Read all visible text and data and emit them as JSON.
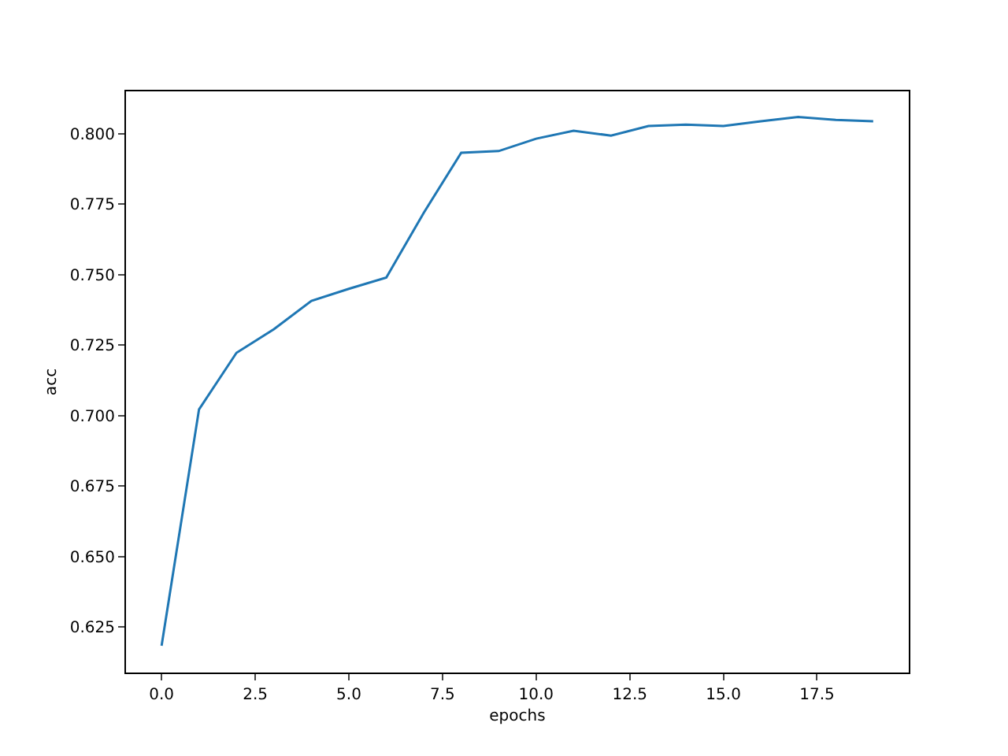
{
  "chart_data": {
    "type": "line",
    "xlabel": "epochs",
    "ylabel": "acc",
    "x": [
      0,
      1,
      2,
      3,
      4,
      5,
      6,
      7,
      8,
      9,
      10,
      11,
      12,
      13,
      14,
      15,
      16,
      17,
      18,
      19
    ],
    "series": [
      {
        "color": "#1f77b4",
        "values": [
          0.6183,
          0.7022,
          0.7223,
          0.7307,
          0.7407,
          0.745,
          0.749,
          0.772,
          0.7933,
          0.7939,
          0.7983,
          0.8011,
          0.7994,
          0.8028,
          0.8033,
          0.8028,
          0.8045,
          0.806,
          0.805,
          0.8045
        ]
      }
    ],
    "xlim": [
      -0.95,
      19.95
    ],
    "ylim": [
      0.6088,
      0.8151
    ],
    "xticks": [
      "0.0",
      {
        "value": 2.5,
        "label": "2.5"
      },
      {
        "value": 5,
        "label": "5.0"
      },
      {
        "value": 7.5,
        "label": "7.5"
      },
      {
        "value": 10,
        "label": "10.0"
      },
      {
        "value": 12.5,
        "label": "12.5"
      },
      {
        "value": 15,
        "label": "15.0"
      },
      {
        "value": 17.5,
        "label": "17.5"
      }
    ],
    "yticks": [
      {
        "value": 0.625,
        "label": "0.625"
      },
      {
        "value": 0.65,
        "label": "0.650"
      },
      {
        "value": 0.675,
        "label": "0.675"
      },
      {
        "value": 0.7,
        "label": "0.700"
      },
      {
        "value": 0.725,
        "label": "0.725"
      },
      {
        "value": 0.75,
        "label": "0.750"
      },
      {
        "value": 0.775,
        "label": "0.775"
      },
      {
        "value": 0.8,
        "label": "0.800"
      }
    ],
    "marker": "none",
    "line_style": "solid"
  }
}
